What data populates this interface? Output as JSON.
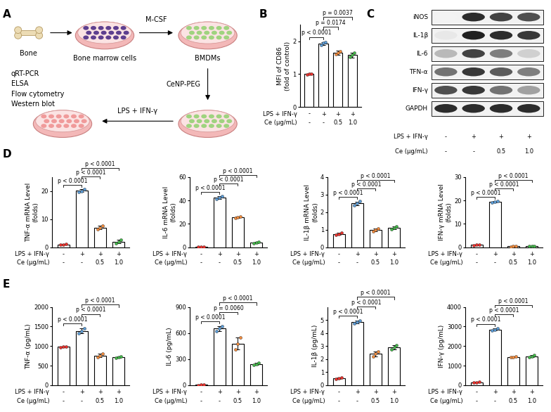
{
  "panel_labels": [
    "A",
    "B",
    "C",
    "D",
    "E"
  ],
  "diagram": {
    "bone": "Bone",
    "dish1": "Bone marrow cells",
    "step1": "M-CSF",
    "dish2": "BMDMs",
    "step2": "CeNP-PEG",
    "step3": "LPS + IFN-γ",
    "assays": [
      "qRT-PCR",
      "ELSA",
      "Flow cytometry",
      "Western blot"
    ]
  },
  "conditions": [
    {
      "label": "LPS + IFN-γ",
      "values": [
        "-",
        "+",
        "+",
        "+"
      ]
    },
    {
      "label": "Ce (μg/mL)",
      "values": [
        "-",
        "-",
        "0.5",
        "1.0"
      ]
    }
  ],
  "blot": {
    "rows": [
      {
        "label": "iNOS",
        "intensity": [
          0.05,
          0.9,
          0.8,
          0.75
        ]
      },
      {
        "label": "IL-1β",
        "intensity": [
          0.1,
          0.95,
          0.9,
          0.85
        ]
      },
      {
        "label": "IL-6",
        "intensity": [
          0.3,
          0.8,
          0.55,
          0.2
        ]
      },
      {
        "label": "TFN-α",
        "intensity": [
          0.6,
          0.85,
          0.7,
          0.55
        ]
      },
      {
        "label": "IFN-γ",
        "intensity": [
          0.75,
          0.85,
          0.6,
          0.4
        ]
      },
      {
        "label": "GAPDH",
        "intensity": [
          0.9,
          0.9,
          0.9,
          0.9
        ]
      }
    ]
  },
  "chart_data": [
    {
      "type": "bar",
      "ylabel": "MFI of CD86\n(fold of control)",
      "values": [
        1.0,
        1.93,
        1.65,
        1.58
      ],
      "errors": [
        0.01,
        0.05,
        0.06,
        0.07
      ],
      "points": [
        [
          0.99,
          1.0,
          1.01
        ],
        [
          1.88,
          1.95,
          1.97
        ],
        [
          1.6,
          1.66,
          1.7
        ],
        [
          1.52,
          1.58,
          1.65
        ]
      ],
      "colors": [
        "#e8312c",
        "#5b9bd5",
        "#f08a3c",
        "#43b649"
      ],
      "ylim": [
        0,
        2.5
      ],
      "yticks": [
        0,
        1,
        2
      ],
      "comparisons": [
        {
          "pair": [
            0,
            1
          ],
          "label": "p < 0.0001"
        },
        {
          "pair": [
            1,
            2
          ],
          "label": "p = 0.0174"
        },
        {
          "pair": [
            1,
            3
          ],
          "label": "p = 0.0037"
        }
      ]
    },
    {
      "type": "bar",
      "ylabel": "TNF-α mRNA Level\n(folds)",
      "values": [
        1.0,
        20.2,
        7.0,
        2.0
      ],
      "errors": [
        0.1,
        0.5,
        0.7,
        0.6
      ],
      "points": [
        [
          0.9,
          1.0,
          1.1
        ],
        [
          19.8,
          20.1,
          20.7
        ],
        [
          6.4,
          7.0,
          7.6
        ],
        [
          1.5,
          2.0,
          2.6
        ]
      ],
      "colors": [
        "#e8312c",
        "#5b9bd5",
        "#f08a3c",
        "#43b649"
      ],
      "ylim": [
        0,
        25
      ],
      "yticks": [
        0,
        10,
        20
      ],
      "comparisons": [
        {
          "pair": [
            0,
            1
          ],
          "label": "p < 0.0001"
        },
        {
          "pair": [
            1,
            2
          ],
          "label": "p < 0.0001"
        },
        {
          "pair": [
            1,
            3
          ],
          "label": "p < 0.0001"
        }
      ]
    },
    {
      "type": "bar",
      "ylabel": "IL-6 mRNA Level\n(folds)",
      "values": [
        0.5,
        42.5,
        25.5,
        4.0
      ],
      "errors": [
        0.1,
        1.2,
        0.5,
        0.8
      ],
      "points": [
        [
          0.4,
          0.5,
          0.6
        ],
        [
          41.3,
          42.6,
          43.6
        ],
        [
          25.0,
          25.5,
          26.0
        ],
        [
          3.3,
          4.0,
          4.8
        ]
      ],
      "colors": [
        "#e8312c",
        "#5b9bd5",
        "#f08a3c",
        "#43b649"
      ],
      "ylim": [
        0,
        60
      ],
      "yticks": [
        0,
        20,
        40,
        60
      ],
      "comparisons": [
        {
          "pair": [
            0,
            1
          ],
          "label": "p < 0.0001"
        },
        {
          "pair": [
            1,
            2
          ],
          "label": "p < 0.0001"
        },
        {
          "pair": [
            1,
            3
          ],
          "label": "p < 0.0001"
        }
      ]
    },
    {
      "type": "bar",
      "ylabel": "IL-1β mRNA Level\n(folds)",
      "values": [
        0.75,
        2.5,
        1.0,
        1.1
      ],
      "errors": [
        0.06,
        0.11,
        0.08,
        0.07
      ],
      "points": [
        [
          0.7,
          0.75,
          0.82
        ],
        [
          2.4,
          2.5,
          2.62
        ],
        [
          0.92,
          1.0,
          1.08
        ],
        [
          1.04,
          1.1,
          1.17
        ]
      ],
      "colors": [
        "#e8312c",
        "#5b9bd5",
        "#f08a3c",
        "#43b649"
      ],
      "ylim": [
        0,
        4
      ],
      "yticks": [
        0,
        1,
        2,
        3,
        4
      ],
      "comparisons": [
        {
          "pair": [
            0,
            1
          ],
          "label": "p < 0.0001"
        },
        {
          "pair": [
            1,
            2
          ],
          "label": "p < 0.0001"
        },
        {
          "pair": [
            1,
            3
          ],
          "label": "p < 0.0001"
        }
      ]
    },
    {
      "type": "bar",
      "ylabel": "IFN-γ mRNA Level\n(folds)",
      "values": [
        1.0,
        19.5,
        0.4,
        0.5
      ],
      "errors": [
        0.15,
        0.35,
        0.1,
        0.12
      ],
      "points": [
        [
          0.85,
          1.0,
          1.15
        ],
        [
          19.2,
          19.4,
          19.9
        ],
        [
          0.3,
          0.4,
          0.5
        ],
        [
          0.38,
          0.5,
          0.62
        ]
      ],
      "colors": [
        "#e8312c",
        "#5b9bd5",
        "#f08a3c",
        "#43b649"
      ],
      "ylim": [
        0,
        30
      ],
      "yticks": [
        0,
        10,
        20,
        30
      ],
      "comparisons": [
        {
          "pair": [
            0,
            1
          ],
          "label": "p < 0.0001"
        },
        {
          "pair": [
            1,
            2
          ],
          "label": "p < 0.0001"
        },
        {
          "pair": [
            1,
            3
          ],
          "label": "p < 0.0001"
        }
      ]
    },
    {
      "type": "bar",
      "ylabel": "TNF-α (pg/mL)",
      "values": [
        980,
        1390,
        760,
        715
      ],
      "errors": [
        15,
        70,
        40,
        25
      ],
      "points": [
        [
          965,
          980,
          995
        ],
        [
          1330,
          1380,
          1460
        ],
        [
          725,
          760,
          800
        ],
        [
          695,
          715,
          740
        ]
      ],
      "colors": [
        "#e8312c",
        "#5b9bd5",
        "#f08a3c",
        "#43b649"
      ],
      "ylim": [
        0,
        2000
      ],
      "yticks": [
        0,
        500,
        1000,
        1500,
        2000
      ],
      "comparisons": [
        {
          "pair": [
            0,
            1
          ],
          "label": "p < 0.0001"
        },
        {
          "pair": [
            1,
            2
          ],
          "label": "p < 0.0001"
        },
        {
          "pair": [
            1,
            3
          ],
          "label": "p < 0.0001"
        }
      ]
    },
    {
      "type": "bar",
      "ylabel": "IL-6 (pg/mL)",
      "values": [
        5,
        650,
        480,
        245
      ],
      "errors": [
        2,
        30,
        70,
        15
      ],
      "points": [
        [
          3,
          5,
          7
        ],
        [
          620,
          650,
          680
        ],
        [
          410,
          480,
          550
        ],
        [
          230,
          245,
          260
        ]
      ],
      "colors": [
        "#e8312c",
        "#5b9bd5",
        "#f08a3c",
        "#43b649"
      ],
      "ylim": [
        0,
        900
      ],
      "yticks": [
        0,
        300,
        600,
        900
      ],
      "comparisons": [
        {
          "pair": [
            0,
            1
          ],
          "label": "p < 0.0001"
        },
        {
          "pair": [
            1,
            2
          ],
          "label": "p = 0.0060"
        },
        {
          "pair": [
            1,
            3
          ],
          "label": "p < 0.0001"
        }
      ]
    },
    {
      "type": "bar",
      "ylabel": "IL-1β (pg/mL)",
      "values": [
        0.55,
        4.85,
        2.4,
        2.9
      ],
      "errors": [
        0.05,
        0.12,
        0.2,
        0.15
      ],
      "points": [
        [
          0.5,
          0.55,
          0.6
        ],
        [
          4.73,
          4.85,
          4.97
        ],
        [
          2.2,
          2.4,
          2.6
        ],
        [
          2.75,
          2.9,
          3.05
        ]
      ],
      "colors": [
        "#e8312c",
        "#5b9bd5",
        "#f08a3c",
        "#43b649"
      ],
      "ylim": [
        0,
        6
      ],
      "yticks": [
        0,
        1,
        2,
        3,
        4,
        5
      ],
      "comparisons": [
        {
          "pair": [
            0,
            1
          ],
          "label": "p < 0.0001"
        },
        {
          "pair": [
            1,
            2
          ],
          "label": "p < 0.0001"
        },
        {
          "pair": [
            1,
            3
          ],
          "label": "p < 0.0001"
        }
      ]
    },
    {
      "type": "bar",
      "ylabel": "IFN-γ (pg/mL)",
      "values": [
        150,
        2850,
        1450,
        1480
      ],
      "errors": [
        20,
        50,
        30,
        60
      ],
      "points": [
        [
          130,
          150,
          170
        ],
        [
          2800,
          2850,
          2900
        ],
        [
          1420,
          1450,
          1480
        ],
        [
          1420,
          1480,
          1540
        ]
      ],
      "colors": [
        "#e8312c",
        "#5b9bd5",
        "#f08a3c",
        "#43b649"
      ],
      "ylim": [
        0,
        4000
      ],
      "yticks": [
        0,
        1000,
        2000,
        3000,
        4000
      ],
      "comparisons": [
        {
          "pair": [
            0,
            1
          ],
          "label": "p < 0.0001"
        },
        {
          "pair": [
            1,
            2
          ],
          "label": "p < 0.0001"
        },
        {
          "pair": [
            1,
            3
          ],
          "label": "p < 0.0001"
        }
      ]
    }
  ]
}
